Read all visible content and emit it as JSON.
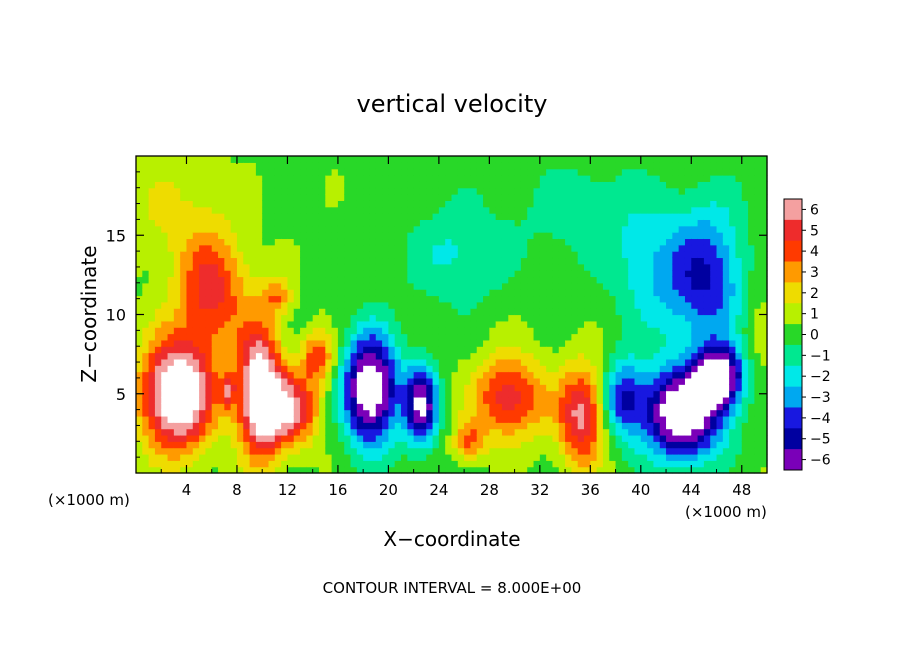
{
  "chart_data": {
    "type": "heatmap",
    "title": "vertical velocity",
    "xlabel": "X−coordinate",
    "ylabel": "Z−coordinate",
    "x_unit_left": "(×1000 m)",
    "x_unit_right": "(×1000 m)",
    "footer": "CONTOUR INTERVAL = 8.000E+00",
    "xlim": [
      0,
      50
    ],
    "ylim": [
      0,
      20
    ],
    "x_ticks": [
      4,
      8,
      12,
      16,
      20,
      24,
      28,
      32,
      36,
      40,
      44,
      48
    ],
    "y_ticks": [
      5,
      10,
      15
    ],
    "colorbar": {
      "levels": [
        6,
        5,
        4,
        3,
        2,
        1,
        0,
        -1,
        -2,
        -3,
        -4,
        -5,
        -6
      ],
      "labels": [
        "6",
        "5",
        "4",
        "3",
        "2",
        "1",
        "0",
        "−1",
        "−2",
        "−3",
        "−4",
        "−5",
        "−6"
      ],
      "colors": [
        "#f4a0a0",
        "#ee2c2c",
        "#ff3a00",
        "#ff9a00",
        "#eedc00",
        "#b8f000",
        "#28d828",
        "#00e890",
        "#00e8e8",
        "#00a8f0",
        "#1818e0",
        "#0000a0",
        "#7a00b8"
      ]
    },
    "features": [
      {
        "sign": "up",
        "cx": 3.3,
        "cz": 5.0,
        "rx": 2.8,
        "rz": 3.4,
        "peak": 9
      },
      {
        "sign": "up",
        "cx": 6.0,
        "cz": 11.5,
        "rx": 2.7,
        "rz": 3.5,
        "peak": 4.6
      },
      {
        "sign": "up",
        "cx": 9.8,
        "cz": 5.3,
        "rx": 1.7,
        "rz": 4.0,
        "peak": 8
      },
      {
        "sign": "up",
        "cx": 12.0,
        "cz": 4.0,
        "rx": 2.4,
        "rz": 2.2,
        "peak": 6
      },
      {
        "sign": "up",
        "cx": 14.4,
        "cz": 7.3,
        "rx": 1.3,
        "rz": 1.6,
        "peak": 4
      },
      {
        "sign": "up",
        "cx": 7.3,
        "cz": 5.2,
        "rx": 0.5,
        "rz": 1.1,
        "peak": 3.6
      },
      {
        "sign": "up",
        "cx": 11.2,
        "cz": 11.2,
        "rx": 1.2,
        "rz": 1.2,
        "peak": 2.8
      },
      {
        "sign": "down",
        "cx": 18.6,
        "cz": 5.3,
        "rx": 2.1,
        "rz": 3.4,
        "peak": 9
      },
      {
        "sign": "down",
        "cx": 22.6,
        "cz": 4.3,
        "rx": 1.3,
        "rz": 2.5,
        "peak": 7
      },
      {
        "sign": "up",
        "cx": 29.6,
        "cz": 4.8,
        "rx": 2.8,
        "rz": 2.6,
        "peak": 5
      },
      {
        "sign": "up",
        "cx": 26.4,
        "cz": 2.0,
        "rx": 1.2,
        "rz": 1.3,
        "peak": 3.2
      },
      {
        "sign": "up",
        "cx": 35.3,
        "cz": 3.6,
        "rx": 1.8,
        "rz": 3.1,
        "peak": 5.6
      },
      {
        "sign": "down",
        "cx": 38.6,
        "cz": 4.8,
        "rx": 1.6,
        "rz": 2.4,
        "peak": 4.2
      },
      {
        "sign": "down",
        "cx": 43.3,
        "cz": 3.8,
        "rx": 3.2,
        "rz": 2.8,
        "peak": 9
      },
      {
        "sign": "down",
        "cx": 46.3,
        "cz": 6.1,
        "rx": 1.9,
        "rz": 1.8,
        "peak": 7.5
      },
      {
        "sign": "down",
        "cx": 45.3,
        "cz": 12.3,
        "rx": 3.1,
        "rz": 4.6,
        "peak": 4.6
      },
      {
        "sign": "down",
        "cx": 40.8,
        "cz": 12.5,
        "rx": 3.0,
        "rz": 3.5,
        "peak": 2.3
      },
      {
        "sign": "down",
        "cx": 25.5,
        "cz": 13.8,
        "rx": 3.8,
        "rz": 3.2,
        "peak": 2.0
      },
      {
        "sign": "up",
        "cx": 3.0,
        "cz": 16.5,
        "rx": 4.5,
        "rz": 3.5,
        "peak": 1.3
      },
      {
        "sign": "down",
        "cx": 36.0,
        "cz": 16.5,
        "rx": 5.5,
        "rz": 3.2,
        "peak": 1.5
      },
      {
        "sign": "up",
        "cx": 49.0,
        "cz": 9.0,
        "rx": 1.5,
        "rz": 5.0,
        "peak": 1.0
      }
    ]
  }
}
